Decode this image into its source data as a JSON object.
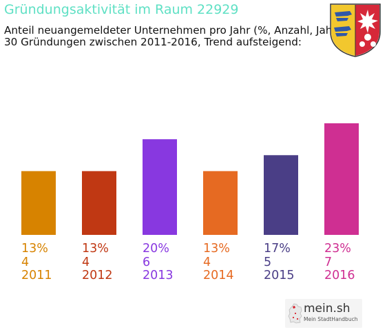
{
  "chart_data": {
    "type": "bar",
    "title": "Gründungsaktivität im Raum 22929",
    "subtitle_lines": [
      "Anteil neuangemeldeter Unternehmen pro Jahr (%, Anzahl, Jahr)",
      "30 Gründungen zwischen 2011-2016, Trend aufsteigend:"
    ],
    "categories": [
      "2011",
      "2012",
      "2013",
      "2014",
      "2015",
      "2016"
    ],
    "values": [
      4,
      4,
      6,
      4,
      5,
      7
    ],
    "percent_labels": [
      "13%",
      "13%",
      "20%",
      "13%",
      "17%",
      "23%"
    ],
    "colors": [
      "#d78300",
      "#c03813",
      "#8838e0",
      "#e66a22",
      "#4a3e86",
      "#cf2f92"
    ],
    "xlabel": "",
    "ylabel": "",
    "ylim": [
      0,
      7
    ],
    "grid": false,
    "legend": "none"
  },
  "branding": {
    "coat_of_arms": "schleswig-holstein-coat-of-arms-icon",
    "logo_icon": "germany-map-icon",
    "logo_name": "mein.sh",
    "logo_tagline": "Mein StadtHandbuch"
  }
}
